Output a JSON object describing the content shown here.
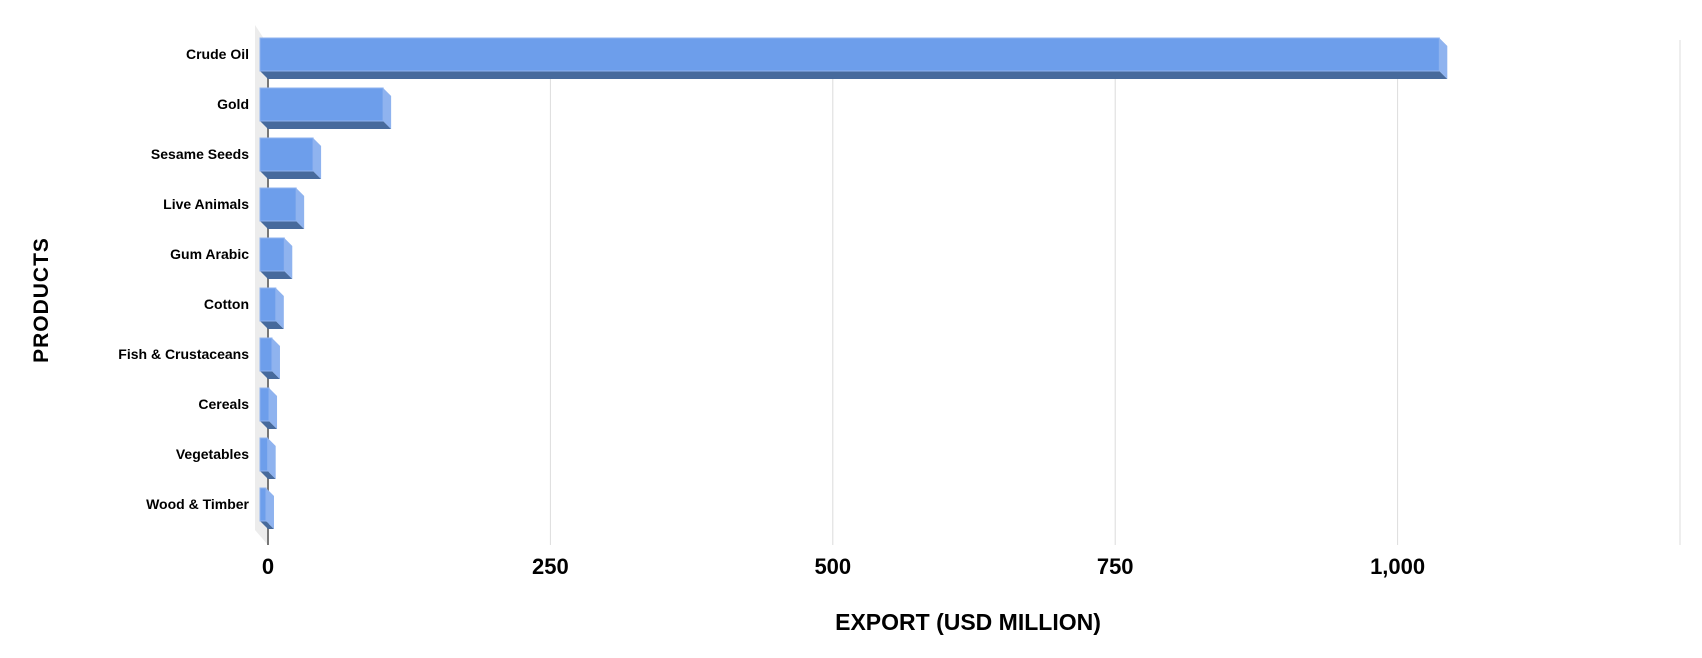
{
  "chart_data": {
    "type": "bar",
    "orientation": "horizontal",
    "style": "3d",
    "categories": [
      "Crude Oil",
      "Gold",
      "Sesame Seeds",
      "Live Animals",
      "Gum Arabic",
      "Cotton",
      "Fish & Crustaceans",
      "Cereals",
      "Vegetables",
      "Wood & Timber"
    ],
    "values": [
      1044,
      109,
      47,
      32,
      21.5,
      14,
      10.6,
      8,
      6.8,
      5.3
    ],
    "xlabel": "EXPORT (USD MILLION)",
    "ylabel": "PRODUCTS",
    "xlim": [
      0,
      1250
    ],
    "xticks": [
      0,
      250,
      500,
      750,
      1000,
      1250
    ],
    "xtick_labels": [
      "0",
      "250",
      "500",
      "750",
      "1,000",
      ""
    ],
    "grid": true,
    "legend": "none",
    "colors": {
      "front": "#6d9eeb",
      "side": "#8fb3ef",
      "bottom": "#476a9c",
      "grid": "#dcdcdc"
    }
  }
}
